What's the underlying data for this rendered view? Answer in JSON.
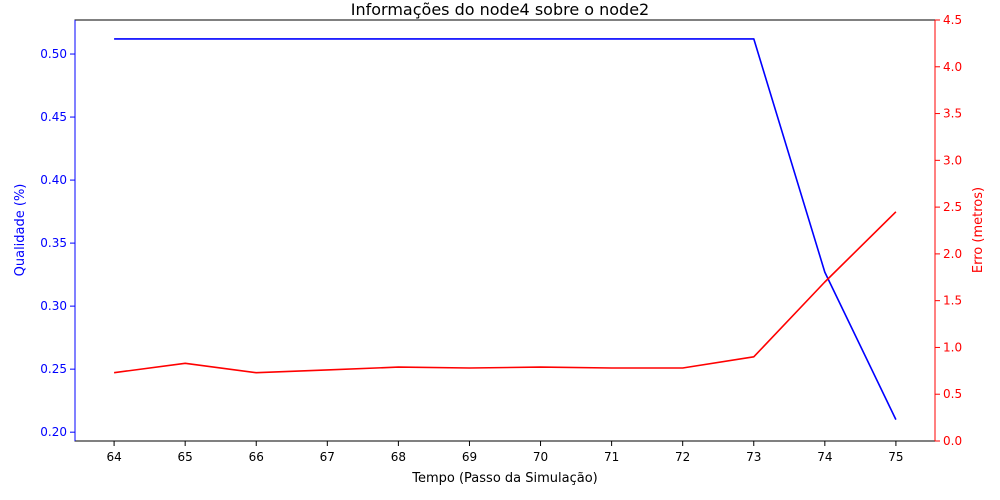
{
  "chart_data": {
    "type": "line",
    "title": "Informações do node4 sobre o node2",
    "xlabel": "Tempo (Passo da Simulação)",
    "x": [
      64,
      65,
      66,
      67,
      68,
      69,
      70,
      71,
      72,
      73,
      74,
      75
    ],
    "xlim": [
      63.45,
      75.55
    ],
    "grid": false,
    "legend": "none",
    "axes": {
      "left": {
        "label": "Qualidade (%)",
        "color": "#0000ff",
        "ylim": [
          0.193,
          0.527
        ],
        "ticks": [
          "0.20",
          "0.25",
          "0.30",
          "0.35",
          "0.40",
          "0.45",
          "0.50"
        ]
      },
      "right": {
        "label": "Erro (metros)",
        "color": "#ff0000",
        "ylim": [
          0,
          4.5
        ],
        "ticks": [
          "0.0",
          "0.5",
          "1.0",
          "1.5",
          "2.0",
          "2.5",
          "3.0",
          "3.5",
          "4.0",
          "4.5"
        ]
      }
    },
    "series": [
      {
        "axis": "left",
        "color": "#0000ff",
        "values": [
          0.512,
          0.512,
          0.512,
          0.512,
          0.512,
          0.512,
          0.512,
          0.512,
          0.512,
          0.512,
          0.327,
          0.21
        ]
      },
      {
        "axis": "right",
        "color": "#ff0000",
        "values": [
          0.73,
          0.83,
          0.73,
          0.76,
          0.79,
          0.78,
          0.79,
          0.78,
          0.78,
          0.9,
          1.7,
          2.45
        ]
      }
    ]
  }
}
